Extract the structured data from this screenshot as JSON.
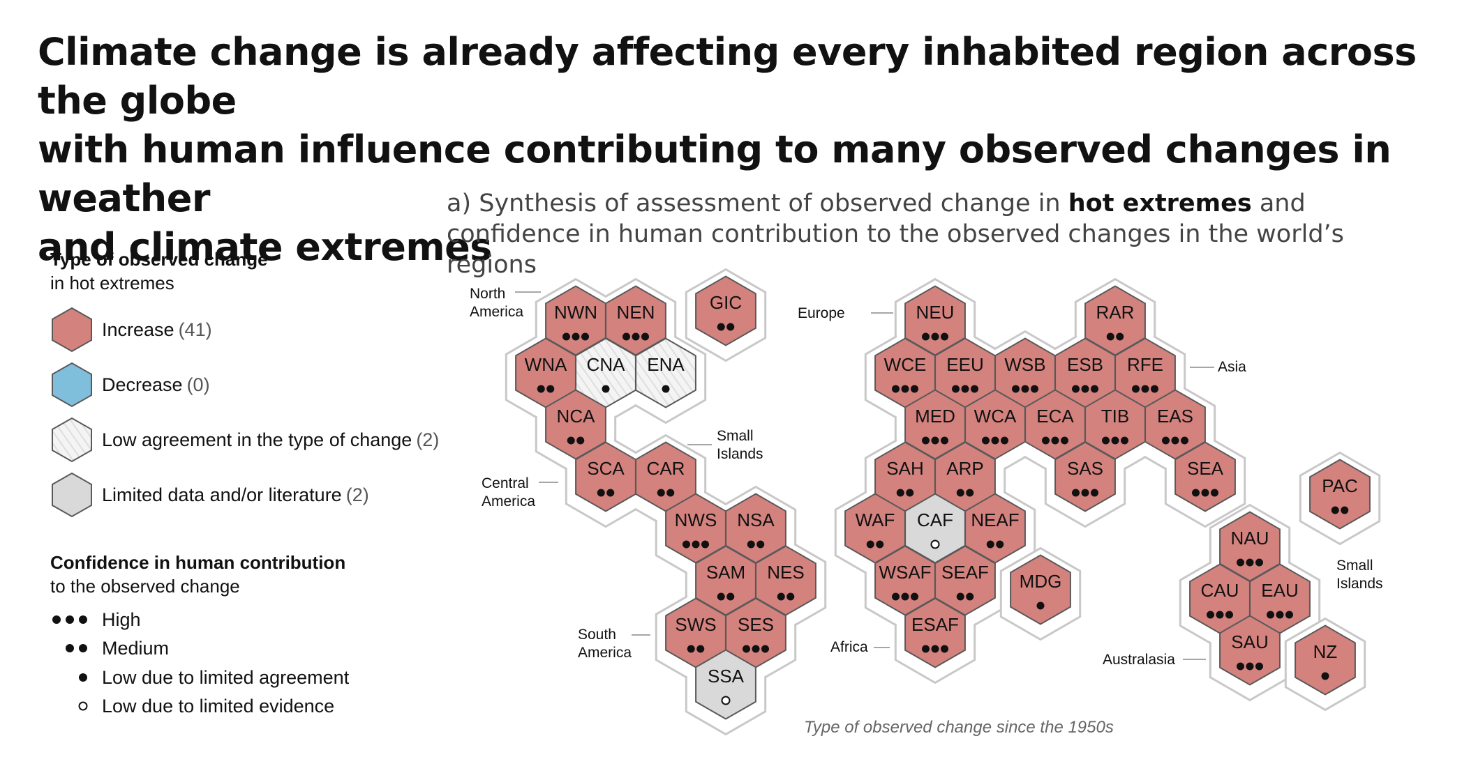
{
  "title": {
    "line1": "Climate change is already affecting every inhabited region across the globe",
    "line2": "with human influence contributing to many observed changes in weather",
    "line3": "and climate extremes"
  },
  "subtitle": {
    "prefix": "a) Synthesis of assessment of observed change in ",
    "bold": "hot extremes",
    "suffix": " and",
    "line2": "confidence in human contribution to the observed changes in the world’s regions"
  },
  "legend": {
    "type_heading_bold": "Type of observed change",
    "type_heading_rest": "in hot extremes",
    "types": [
      {
        "key": "increase",
        "label": "Increase",
        "count": "(41)"
      },
      {
        "key": "decrease",
        "label": "Decrease",
        "count": "(0)"
      },
      {
        "key": "low",
        "label": "Low agreement in the type of change",
        "count": "(2)"
      },
      {
        "key": "limited",
        "label": "Limited data and/or literature",
        "count": "(2)"
      }
    ],
    "conf_heading_bold": "Confidence in human contribution",
    "conf_heading_rest": "to the observed change",
    "confidence": [
      {
        "key": "high",
        "label": "High"
      },
      {
        "key": "medium",
        "label": "Medium"
      },
      {
        "key": "low-agree",
        "label": "Low due to limited agreement"
      },
      {
        "key": "low-evid",
        "label": "Low due to limited evidence"
      }
    ]
  },
  "colors": {
    "increase": "#d4827e",
    "decrease": "#7fbfdc",
    "limited": "#d9d9d9",
    "low_bg": "#f4f4f4",
    "hex_stroke": "#595959",
    "halo": "#c8c8c8"
  },
  "region_labels": [
    {
      "id": "north-america",
      "lines": [
        "North",
        "America"
      ]
    },
    {
      "id": "europe",
      "lines": [
        "Europe"
      ]
    },
    {
      "id": "asia",
      "lines": [
        "Asia"
      ]
    },
    {
      "id": "small-islands-1",
      "lines": [
        "Small",
        "Islands"
      ]
    },
    {
      "id": "central-america",
      "lines": [
        "Central",
        "America"
      ]
    },
    {
      "id": "south-america",
      "lines": [
        "South",
        "America"
      ]
    },
    {
      "id": "africa",
      "lines": [
        "Africa"
      ]
    },
    {
      "id": "australasia",
      "lines": [
        "Australasia"
      ]
    },
    {
      "id": "small-islands-2",
      "lines": [
        "Small",
        "Islands"
      ]
    }
  ],
  "regions": [
    {
      "code": "NWN",
      "type": "increase",
      "conf": "high"
    },
    {
      "code": "NEN",
      "type": "increase",
      "conf": "high"
    },
    {
      "code": "GIC",
      "type": "increase",
      "conf": "medium"
    },
    {
      "code": "WNA",
      "type": "increase",
      "conf": "medium"
    },
    {
      "code": "CNA",
      "type": "low",
      "conf": "low-agree"
    },
    {
      "code": "ENA",
      "type": "low",
      "conf": "low-agree"
    },
    {
      "code": "NCA",
      "type": "increase",
      "conf": "medium"
    },
    {
      "code": "SCA",
      "type": "increase",
      "conf": "medium"
    },
    {
      "code": "CAR",
      "type": "increase",
      "conf": "medium"
    },
    {
      "code": "NWS",
      "type": "increase",
      "conf": "high"
    },
    {
      "code": "NSA",
      "type": "increase",
      "conf": "medium"
    },
    {
      "code": "SAM",
      "type": "increase",
      "conf": "medium"
    },
    {
      "code": "NES",
      "type": "increase",
      "conf": "medium"
    },
    {
      "code": "SWS",
      "type": "increase",
      "conf": "medium"
    },
    {
      "code": "SES",
      "type": "increase",
      "conf": "high"
    },
    {
      "code": "SSA",
      "type": "limited",
      "conf": "low-evid"
    },
    {
      "code": "NEU",
      "type": "increase",
      "conf": "high"
    },
    {
      "code": "RAR",
      "type": "increase",
      "conf": "medium"
    },
    {
      "code": "WCE",
      "type": "increase",
      "conf": "high"
    },
    {
      "code": "EEU",
      "type": "increase",
      "conf": "high"
    },
    {
      "code": "WSB",
      "type": "increase",
      "conf": "high"
    },
    {
      "code": "ESB",
      "type": "increase",
      "conf": "high"
    },
    {
      "code": "RFE",
      "type": "increase",
      "conf": "high"
    },
    {
      "code": "MED",
      "type": "increase",
      "conf": "high"
    },
    {
      "code": "WCA",
      "type": "increase",
      "conf": "high"
    },
    {
      "code": "ECA",
      "type": "increase",
      "conf": "high"
    },
    {
      "code": "TIB",
      "type": "increase",
      "conf": "high"
    },
    {
      "code": "EAS",
      "type": "increase",
      "conf": "high"
    },
    {
      "code": "SAH",
      "type": "increase",
      "conf": "medium"
    },
    {
      "code": "ARP",
      "type": "increase",
      "conf": "medium"
    },
    {
      "code": "SAS",
      "type": "increase",
      "conf": "high"
    },
    {
      "code": "SEA",
      "type": "increase",
      "conf": "high"
    },
    {
      "code": "WAF",
      "type": "increase",
      "conf": "medium"
    },
    {
      "code": "CAF",
      "type": "limited",
      "conf": "low-evid"
    },
    {
      "code": "NEAF",
      "type": "increase",
      "conf": "medium"
    },
    {
      "code": "WSAF",
      "type": "increase",
      "conf": "high"
    },
    {
      "code": "SEAF",
      "type": "increase",
      "conf": "medium"
    },
    {
      "code": "MDG",
      "type": "increase",
      "conf": "low-agree"
    },
    {
      "code": "ESAF",
      "type": "increase",
      "conf": "high"
    },
    {
      "code": "PAC",
      "type": "increase",
      "conf": "medium"
    },
    {
      "code": "NAU",
      "type": "increase",
      "conf": "high"
    },
    {
      "code": "CAU",
      "type": "increase",
      "conf": "high"
    },
    {
      "code": "EAU",
      "type": "increase",
      "conf": "high"
    },
    {
      "code": "SAU",
      "type": "increase",
      "conf": "high"
    },
    {
      "code": "NZ",
      "type": "increase",
      "conf": "low-agree"
    }
  ],
  "caption": "Type of observed change since the 1950s"
}
